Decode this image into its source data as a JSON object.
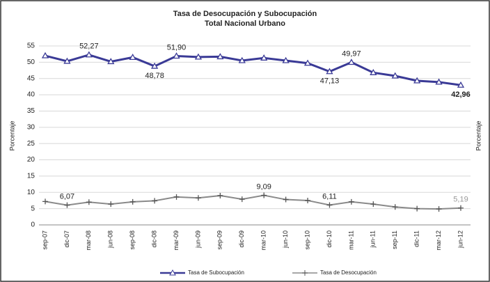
{
  "chart_data": {
    "type": "line",
    "title": "Tasa de Desocupación y Subocupación",
    "subtitle": "Total Nacional Urbano",
    "ylabel": "Porcentaje",
    "ylabel_right": "Porcentaje",
    "categories": [
      "sep-07",
      "dic-07",
      "mar-08",
      "jun-08",
      "sep-08",
      "dic-08",
      "mar-09",
      "jun-09",
      "sep-09",
      "dic-09",
      "mar-10",
      "jun-10",
      "sep-10",
      "dic-10",
      "mar-11",
      "jun-11",
      "sep-11",
      "dic-11",
      "mar-12",
      "jun-12"
    ],
    "series": [
      {
        "name": "Tasa de Subocupación",
        "color": "#3a3a96",
        "values": [
          52.0,
          50.3,
          52.27,
          50.2,
          51.5,
          48.78,
          51.9,
          51.6,
          51.7,
          50.5,
          51.3,
          50.5,
          49.7,
          47.13,
          49.97,
          46.8,
          45.8,
          44.3,
          43.9,
          42.96
        ],
        "value_labels": [
          null,
          null,
          "52,27",
          null,
          null,
          "48,78",
          "51,90",
          null,
          null,
          null,
          null,
          null,
          null,
          "47,13",
          "49,97",
          null,
          null,
          null,
          null,
          "42,96"
        ]
      },
      {
        "name": "Tasa de Desocupación",
        "color": "#8a8a8a",
        "values": [
          7.2,
          6.07,
          7.0,
          6.4,
          7.1,
          7.4,
          8.6,
          8.3,
          9.0,
          7.9,
          9.09,
          7.8,
          7.5,
          6.11,
          7.1,
          6.4,
          5.5,
          5.0,
          4.9,
          5.19
        ],
        "value_labels": [
          null,
          "6,07",
          null,
          null,
          null,
          null,
          null,
          null,
          null,
          null,
          "9,09",
          null,
          null,
          "6,11",
          null,
          null,
          null,
          null,
          null,
          "5,19"
        ]
      }
    ],
    "ylim": [
      0,
      55
    ],
    "yticks": [
      0,
      5,
      10,
      15,
      20,
      25,
      30,
      35,
      40,
      45,
      50,
      55
    ],
    "grid": true,
    "legend": "bottom"
  }
}
